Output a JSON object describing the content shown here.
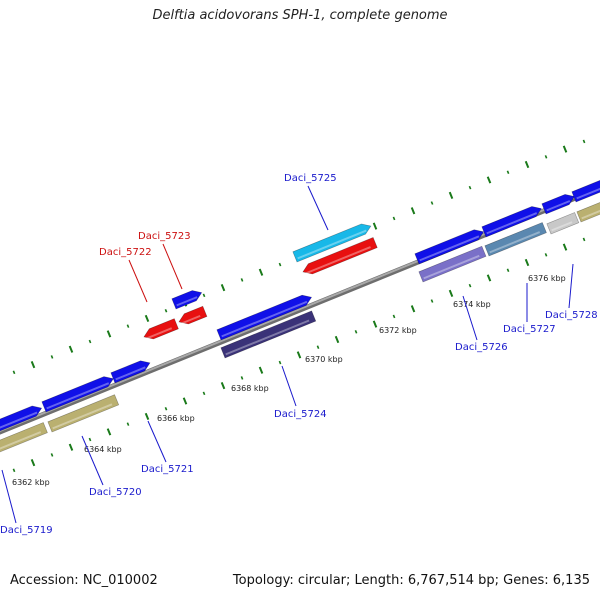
{
  "title": "Delftia acidovorans SPH-1, complete genome",
  "footer": {
    "accession": "Accession: NC_010002",
    "summary": "Topology: circular; Length: 6,767,514 bp; Genes: 6,135"
  },
  "colors": {
    "forward_gene": "#1010e8",
    "forward_gene_light": "#18b8e8",
    "reverse_gene": "#e81010",
    "cds_dark": "#3a3278",
    "cds_olive": "#bab070",
    "cds_purple": "#7a70c8",
    "cds_steel": "#5a88b0",
    "cds_grey": "#c8c8c8",
    "backbone": "#8a8a8a",
    "tick_mark": "#1a7a1a",
    "label_forward": "#1a1acc",
    "label_reverse": "#cc1010"
  },
  "ticks": [
    "6362 kbp",
    "6364 kbp",
    "6366 kbp",
    "6368 kbp",
    "6370 kbp",
    "6372 kbp",
    "6374 kbp",
    "6376 kbp"
  ],
  "genes": [
    {
      "label": "Daci_5719",
      "strand": "forward"
    },
    {
      "label": "Daci_5720",
      "strand": "forward"
    },
    {
      "label": "Daci_5721",
      "strand": "forward"
    },
    {
      "label": "Daci_5722",
      "strand": "reverse"
    },
    {
      "label": "Daci_5723",
      "strand": "reverse"
    },
    {
      "label": "Daci_5724",
      "strand": "forward"
    },
    {
      "label": "Daci_5725",
      "strand": "forward"
    },
    {
      "label": "Daci_5726",
      "strand": "forward"
    },
    {
      "label": "Daci_5727",
      "strand": "forward"
    },
    {
      "label": "Daci_5728",
      "strand": "forward"
    }
  ]
}
